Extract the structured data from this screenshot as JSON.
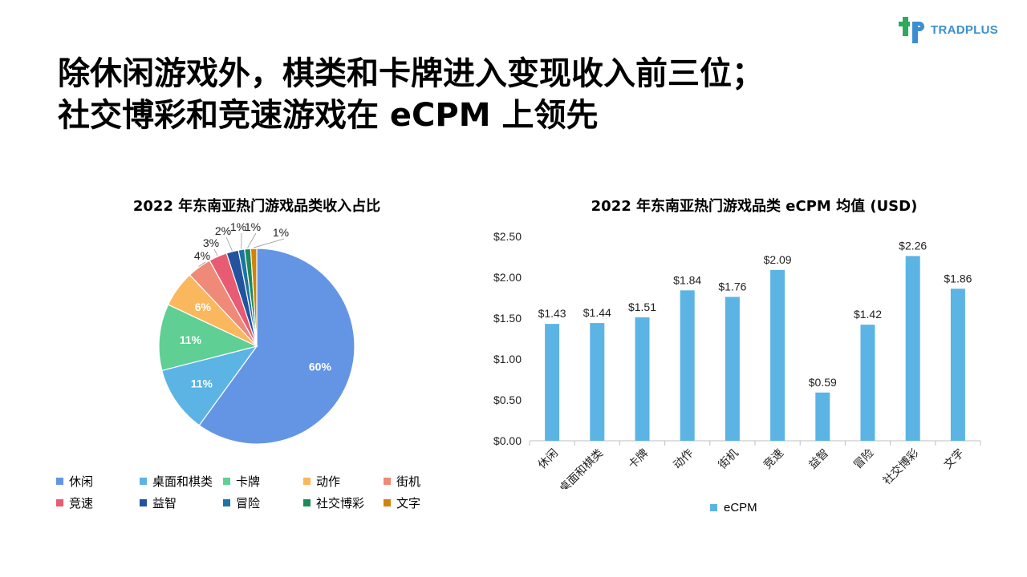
{
  "logo": {
    "brand_bold": "TRAD",
    "brand_light": "PLUS"
  },
  "title": {
    "line1": "除休闲游戏外，棋类和卡牌进入变现收入前三位；",
    "line2": "社交博彩和竞速游戏在 eCPM 上领先"
  },
  "colors": {
    "bar": "#5bb4e4",
    "logo_green": "#2eaa5c",
    "logo_blue": "#3b8fd0"
  },
  "chart_data": [
    {
      "type": "pie",
      "title": "2022 年东南亚热门游戏品类收入占比",
      "legend_position": "bottom",
      "slices": [
        {
          "name": "休闲",
          "value": 60,
          "label": "60%",
          "color": "#6495e5"
        },
        {
          "name": "桌面和棋类",
          "value": 11,
          "label": "11%",
          "color": "#5bb4e4"
        },
        {
          "name": "卡牌",
          "value": 11,
          "label": "11%",
          "color": "#5fcf94"
        },
        {
          "name": "动作",
          "value": 6,
          "label": "6%",
          "color": "#fbb75e"
        },
        {
          "name": "街机",
          "value": 4,
          "label": "4%",
          "color": "#f08a78"
        },
        {
          "name": "竞速",
          "value": 3,
          "label": "3%",
          "color": "#e75c72"
        },
        {
          "name": "益智",
          "value": 2,
          "label": "2%",
          "color": "#23539e"
        },
        {
          "name": "冒险",
          "value": 1,
          "label": "1%",
          "color": "#1d73a3"
        },
        {
          "name": "社交博彩",
          "value": 1,
          "label": "1%",
          "color": "#1e8a58"
        },
        {
          "name": "文字",
          "value": 1,
          "label": "1%",
          "color": "#d2830c"
        }
      ]
    },
    {
      "type": "bar",
      "title": "2022 年东南亚热门游戏品类 eCPM 均值 (USD)",
      "categories": [
        "休闲",
        "桌面和棋类",
        "卡牌",
        "动作",
        "街机",
        "竞速",
        "益智",
        "冒险",
        "社交博彩",
        "文字"
      ],
      "series": [
        {
          "name": "eCPM",
          "values": [
            1.43,
            1.44,
            1.51,
            1.84,
            1.76,
            2.09,
            0.59,
            1.42,
            2.26,
            1.86
          ]
        }
      ],
      "value_labels": [
        "$1.43",
        "$1.44",
        "$1.51",
        "$1.84",
        "$1.76",
        "$2.09",
        "$0.59",
        "$1.42",
        "$2.26",
        "$1.86"
      ],
      "yticks": [
        "$0.00",
        "$0.50",
        "$1.00",
        "$1.50",
        "$2.00",
        "$2.50"
      ],
      "ylim": [
        0,
        2.5
      ],
      "grid": false,
      "legend_position": "bottom"
    }
  ]
}
